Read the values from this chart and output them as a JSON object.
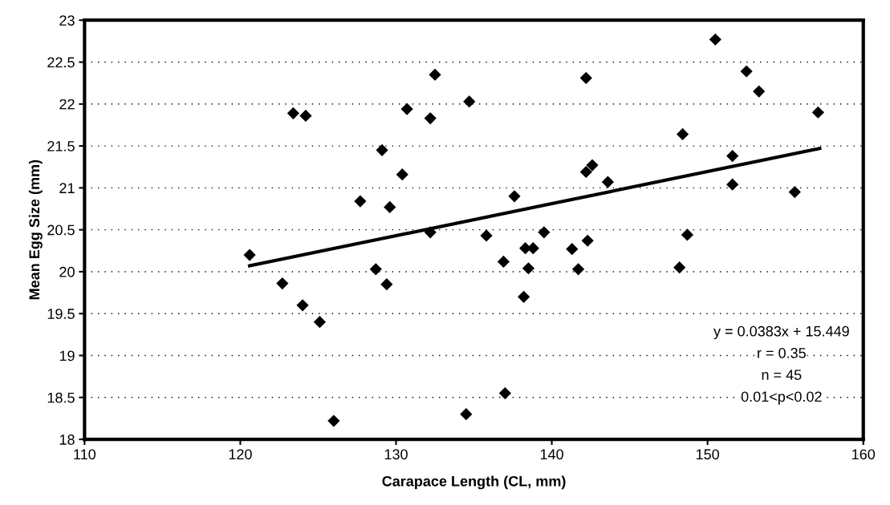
{
  "chart_data": {
    "type": "scatter",
    "xlabel": "Carapace Length (CL, mm)",
    "ylabel": "Mean Egg Size (mm)",
    "xlim": [
      110,
      160
    ],
    "xticks": [
      110,
      120,
      130,
      140,
      150,
      160
    ],
    "ylim": [
      18,
      23
    ],
    "yticks": [
      18,
      {
        "value": 18.5,
        "label": "18.5"
      },
      19,
      {
        "value": 19.5,
        "label": "19.5"
      },
      20,
      {
        "value": 20.5,
        "label": "20.5"
      },
      21,
      {
        "value": 21.5,
        "label": "21.5"
      },
      22,
      {
        "value": 22.5,
        "label": "22.5"
      },
      23
    ],
    "grid": "y",
    "legend": false,
    "series": [
      {
        "color": "#000000",
        "marker": "diamond",
        "x": [
          123.4,
          124.2,
          132.5,
          130.7,
          132.2,
          129.1,
          130.4,
          127.7,
          129.6,
          132.2,
          120.6,
          122.7,
          124.0,
          125.1,
          126.0,
          128.7,
          129.4,
          150.5,
          152.5,
          153.3,
          142.2,
          134.7,
          157.1,
          148.4,
          151.6,
          142.6,
          142.2,
          143.6,
          151.6,
          155.6,
          137.6,
          135.8,
          139.5,
          138.3,
          138.8,
          141.3,
          142.3,
          148.7,
          136.9,
          138.5,
          141.7,
          148.2,
          138.2,
          137.0,
          134.5
        ],
        "values": [
          21.89,
          21.86,
          22.35,
          21.94,
          21.83,
          21.45,
          21.16,
          20.84,
          20.77,
          20.47,
          20.2,
          19.86,
          19.6,
          19.4,
          18.22,
          20.03,
          19.85,
          22.77,
          22.39,
          22.15,
          22.31,
          22.03,
          21.9,
          21.64,
          21.38,
          21.27,
          21.19,
          21.07,
          21.04,
          20.95,
          20.9,
          20.43,
          20.47,
          20.28,
          20.28,
          20.27,
          20.37,
          20.44,
          20.12,
          20.04,
          20.03,
          20.05,
          19.7,
          18.55,
          18.3
        ]
      },
      {
        "type": "line",
        "color": "#000000",
        "marker": "none",
        "line_style": "solid",
        "x": [
          120.6,
          157.2
        ],
        "values": [
          20.07,
          21.47
        ]
      }
    ],
    "annotations": [
      "y = 0.0383x + 15.449",
      "r = 0.35",
      "n = 45",
      "0.01<p<0.02"
    ]
  }
}
